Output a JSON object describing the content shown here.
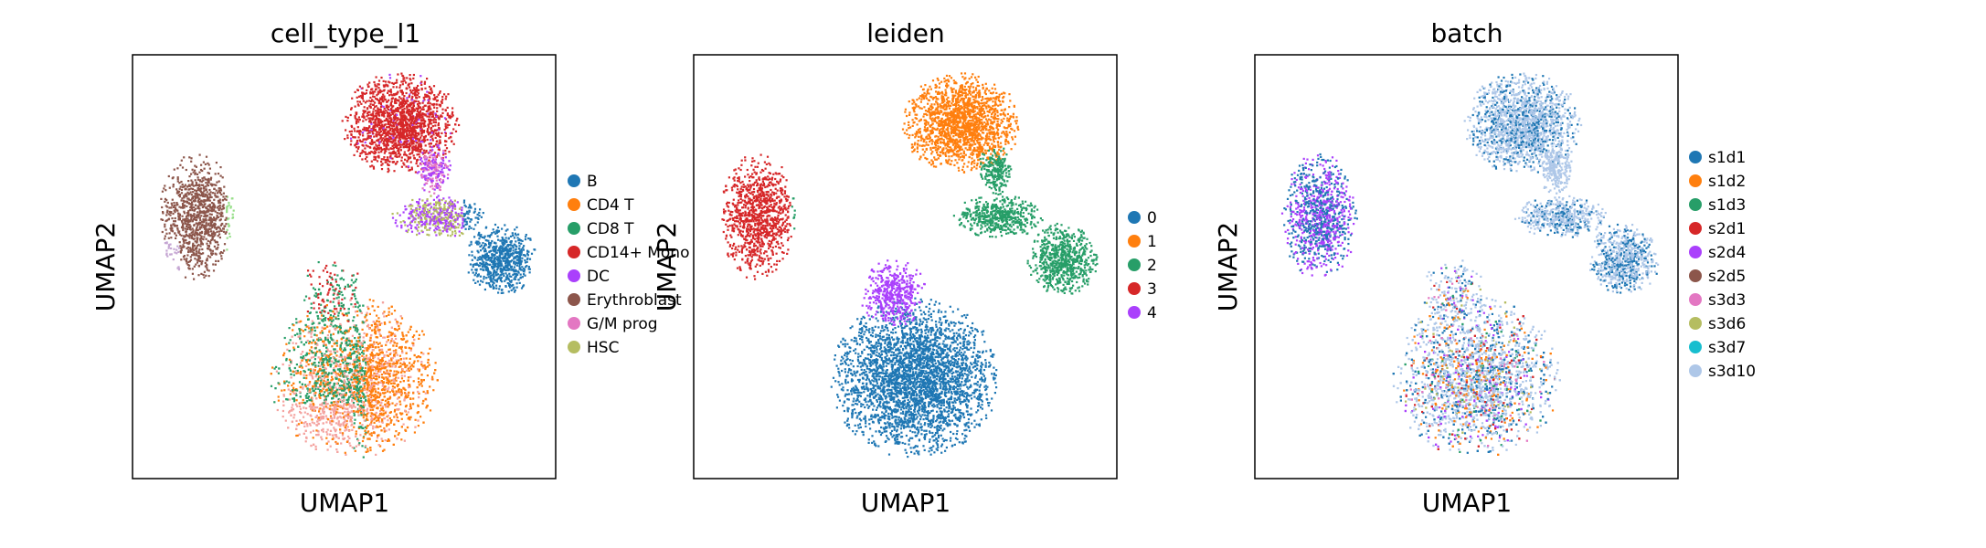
{
  "chart_data": [
    {
      "type": "scatter",
      "title": "cell_type_l1",
      "xlabel": "UMAP1",
      "ylabel": "UMAP2",
      "grid": false,
      "ticks": false,
      "legend_position": "right",
      "legend": [
        "B",
        "CD4 T",
        "CD8 T",
        "CD14+ Mono",
        "DC",
        "Erythroblast",
        "G/M prog",
        "HSC"
      ],
      "colors": [
        "#1f77b4",
        "#ff7f0e",
        "#279e68",
        "#d62728",
        "#aa40fc",
        "#8c564b",
        "#e377c2",
        "#b5bd61"
      ]
    },
    {
      "type": "scatter",
      "title": "leiden",
      "xlabel": "UMAP1",
      "ylabel": "UMAP2",
      "grid": false,
      "ticks": false,
      "legend_position": "right",
      "legend": [
        "0",
        "1",
        "2",
        "3",
        "4"
      ],
      "colors": [
        "#1f77b4",
        "#ff7f0e",
        "#279e68",
        "#d62728",
        "#aa40fc"
      ]
    },
    {
      "type": "scatter",
      "title": "batch",
      "xlabel": "UMAP1",
      "ylabel": "UMAP2",
      "grid": false,
      "ticks": false,
      "legend_position": "right",
      "legend": [
        "s1d1",
        "s1d2",
        "s1d3",
        "s2d1",
        "s2d4",
        "s2d5",
        "s3d3",
        "s3d6",
        "s3d7",
        "s3d10"
      ],
      "colors": [
        "#1f77b4",
        "#ff7f0e",
        "#279e68",
        "#d62728",
        "#aa40fc",
        "#8c564b",
        "#e377c2",
        "#b5bd61",
        "#17becf",
        "#aec7e8"
      ]
    }
  ]
}
